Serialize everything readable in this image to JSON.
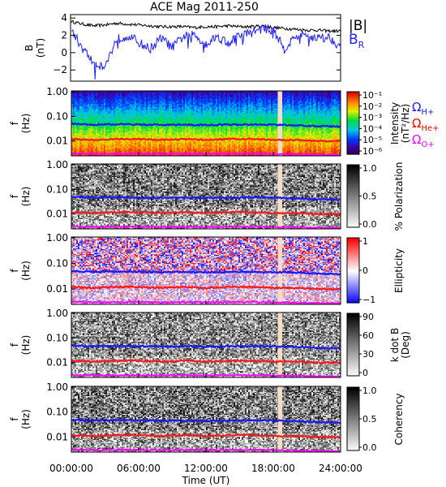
{
  "title": "ACE Mag 2011-250",
  "time_axis": {
    "label": "Time (UT)",
    "ticks": [
      "00:00:00",
      "06:00:00",
      "12:00:00",
      "18:00:00",
      "24:00:00"
    ]
  },
  "legend_b": {
    "total": "|B|",
    "radial": "B",
    "radial_sub": "R"
  },
  "cyclotron_labels": [
    {
      "text": "Ω",
      "sub": "H+",
      "color": "#1a1aff"
    },
    {
      "text": "Ω",
      "sub": "He+",
      "color": "#ff0000"
    },
    {
      "text": "Ω",
      "sub": "O+",
      "color": "#ff00ff"
    }
  ],
  "colors": {
    "B_total": "#000000",
    "B_radial": "#1f1fff",
    "H_line": "#1a1aff",
    "He_line": "#ff1a1a",
    "O_line": "#ff00ff",
    "data_gap": "#f5dcc6"
  },
  "chart_data": [
    {
      "type": "line",
      "panel": "B field",
      "ylabel": "B",
      "yunit": "(nT)",
      "yticks": [
        "4",
        "2",
        "0",
        "−2"
      ],
      "ylim": [
        -3.2,
        4.3
      ],
      "x_hours": [
        0,
        1,
        2,
        3,
        4,
        5,
        6,
        7,
        8,
        9,
        10,
        11,
        12,
        13,
        14,
        15,
        16,
        17,
        18,
        19,
        20,
        21,
        22,
        23,
        24
      ],
      "series": [
        {
          "name": "|B|",
          "values": [
            3.6,
            3.3,
            3.1,
            3.2,
            3.4,
            3.3,
            3.2,
            3.1,
            3.0,
            3.0,
            3.0,
            2.9,
            3.0,
            3.0,
            3.1,
            3.0,
            3.0,
            3.1,
            2.9,
            2.8,
            2.7,
            2.6,
            2.6,
            2.5,
            2.5
          ]
        },
        {
          "name": "B_R",
          "values": [
            2.6,
            0.5,
            -1.2,
            -1.6,
            1.5,
            2.0,
            1.2,
            0.4,
            1.7,
            0.6,
            1.9,
            2.0,
            1.0,
            1.9,
            1.1,
            2.0,
            2.3,
            2.8,
            2.6,
            0.4,
            1.9,
            2.0,
            1.7,
            1.8,
            0.7
          ]
        }
      ]
    },
    {
      "type": "heatmap",
      "panel": "Intensity spectrogram",
      "ylabel": "f",
      "yunit": "(Hz)",
      "yticks": [
        "1.00",
        "0.10",
        "0.01"
      ],
      "colorbar_label": "Intensity",
      "colorbar_unit": "(nT²/Hz)",
      "colorbar_ticks": [
        "10⁻¹",
        "10⁻²",
        "10⁻³",
        "10⁻⁴",
        "10⁻⁵",
        "10⁻⁶"
      ]
    },
    {
      "type": "heatmap",
      "panel": "Polarization",
      "ylabel": "f",
      "yunit": "(Hz)",
      "yticks": [
        "1.00",
        "0.10",
        "0.01"
      ],
      "colorbar_label": "% Polarization",
      "colorbar_ticks": [
        "1.0",
        "0.5",
        "0.0"
      ]
    },
    {
      "type": "heatmap",
      "panel": "Ellipticity",
      "ylabel": "f",
      "yunit": "(Hz)",
      "yticks": [
        "1.00",
        "0.10",
        "0.01"
      ],
      "colorbar_label": "Ellipticity",
      "colorbar_ticks": [
        "1",
        "0",
        "−1"
      ]
    },
    {
      "type": "heatmap",
      "panel": "k dot B",
      "ylabel": "f",
      "yunit": "(Hz)",
      "yticks": [
        "1.00",
        "0.10",
        "0.01"
      ],
      "colorbar_label": "k dot B",
      "colorbar_unit": "(Deg)",
      "colorbar_ticks": [
        "90",
        "60",
        "30",
        "0"
      ]
    },
    {
      "type": "heatmap",
      "panel": "Coherency",
      "ylabel": "f",
      "yunit": "(Hz)",
      "yticks": [
        "1.00",
        "0.10",
        "0.01"
      ],
      "colorbar_label": "Coherency",
      "colorbar_ticks": [
        "1.0",
        "0.5",
        "0.0"
      ]
    }
  ],
  "gyrofrequency_hz": {
    "x_hours": [
      0,
      2,
      4,
      6,
      8,
      10,
      12,
      14,
      16,
      18,
      20,
      22,
      24
    ],
    "H+": [
      0.05,
      0.046,
      0.048,
      0.047,
      0.045,
      0.046,
      0.045,
      0.046,
      0.047,
      0.046,
      0.043,
      0.04,
      0.038
    ],
    "He+": [
      0.012,
      0.011,
      0.012,
      0.012,
      0.011,
      0.012,
      0.011,
      0.012,
      0.012,
      0.011,
      0.011,
      0.01,
      0.01
    ],
    "O+": [
      0.0032,
      0.003,
      0.0031,
      0.0031,
      0.003,
      0.0031,
      0.003,
      0.0031,
      0.0031,
      0.003,
      0.0029,
      0.0028,
      0.0027
    ]
  },
  "data_gap_hours": [
    18.4,
    18.8
  ]
}
